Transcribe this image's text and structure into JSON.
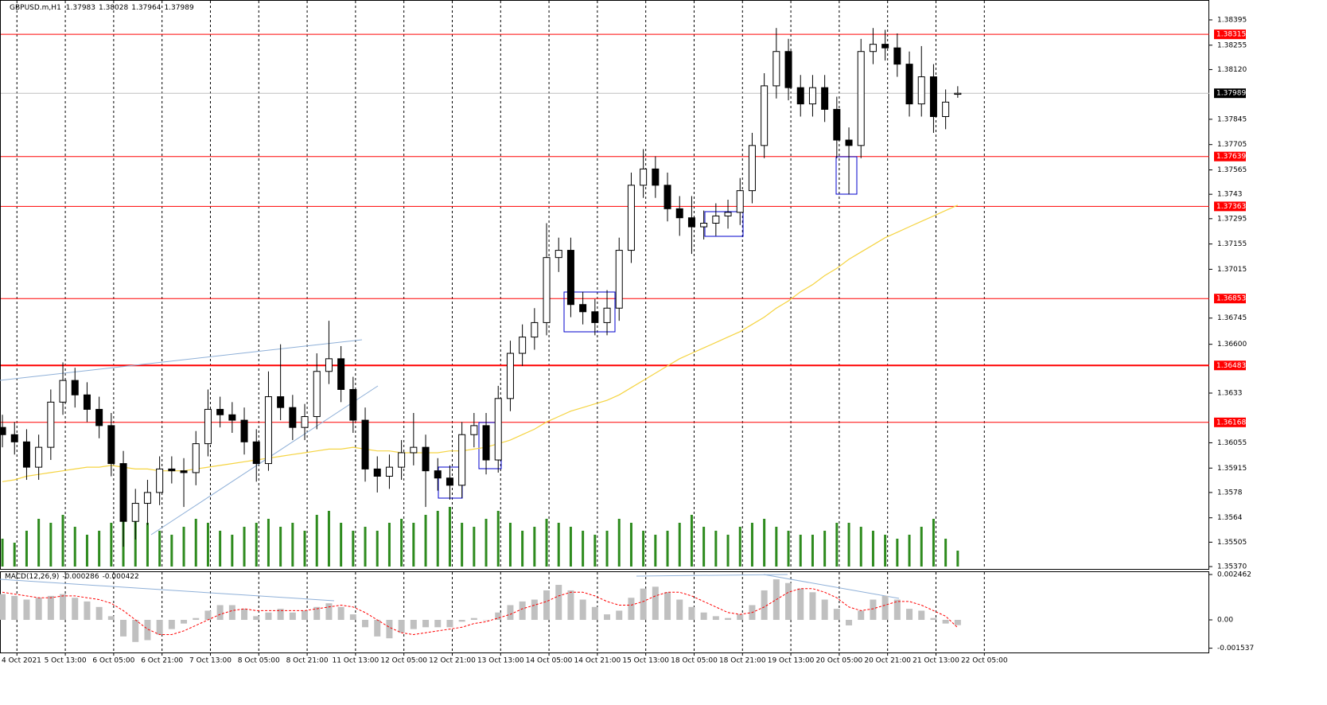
{
  "chart_data": {
    "type": "candlestick",
    "symbol": "GBPUSD.m,H1",
    "xlim": [
      -0.2,
      99.8
    ],
    "ylim": [
      1.35357,
      1.38505
    ],
    "grid": true,
    "bull_color": "#ffffff",
    "bear_color": "#000000",
    "yticks": [
      1.38395,
      1.38255,
      {
        "value": 1.3812,
        "label": "1.38120"
      },
      1.37845,
      1.37705,
      1.37565,
      1.3743,
      1.37295,
      1.37155,
      1.37015,
      1.36745,
      {
        "value": 1.366,
        "label": "1.36600"
      },
      1.3633,
      1.36055,
      1.35915,
      1.3578,
      1.3564,
      1.35505,
      {
        "value": 1.3537,
        "label": "1.35370"
      }
    ],
    "xticks": [
      {
        "value": 1.2,
        "label": "4 Oct 2021"
      },
      {
        "value": 5.2,
        "label": "5 Oct 13:00"
      },
      {
        "value": 9.2,
        "label": "6 Oct 05:00"
      },
      {
        "value": 13.2,
        "label": "6 Oct 21:00"
      },
      {
        "value": 17.2,
        "label": "7 Oct 13:00"
      },
      {
        "value": 21.2,
        "label": "8 Oct 05:00"
      },
      {
        "value": 25.2,
        "label": "8 Oct 21:00"
      },
      {
        "value": 29.2,
        "label": "11 Oct 13:00"
      },
      {
        "value": 33.2,
        "label": "12 Oct 05:00"
      },
      {
        "value": 37.2,
        "label": "12 Oct 21:00"
      },
      {
        "value": 41.2,
        "label": "13 Oct 13:00"
      },
      {
        "value": 45.2,
        "label": "14 Oct 05:00"
      },
      {
        "value": 49.2,
        "label": "14 Oct 21:00"
      },
      {
        "value": 53.2,
        "label": "15 Oct 13:00"
      },
      {
        "value": 57.2,
        "label": "18 Oct 05:00"
      },
      {
        "value": 61.2,
        "label": "18 Oct 21:00"
      },
      {
        "value": 65.2,
        "label": "19 Oct 13:00"
      },
      {
        "value": 69.2,
        "label": "20 Oct 05:00"
      },
      {
        "value": 73.2,
        "label": "20 Oct 21:00"
      },
      {
        "value": 77.2,
        "label": "21 Oct 13:00"
      },
      {
        "value": 81.2,
        "label": "22 Oct 05:00"
      }
    ],
    "levels": [
      1.38315,
      1.37639,
      1.37363,
      1.36853,
      1.36483,
      1.36168
    ],
    "level_color": "#ff0000",
    "open": [
      1.3614,
      1.361,
      1.3606,
      1.3592,
      1.3603,
      1.3628,
      1.364,
      1.3632,
      1.3624,
      1.3615,
      1.3594,
      1.3562,
      1.3572,
      1.3578,
      1.3591,
      1.359,
      1.3589,
      1.3605,
      1.3624,
      1.3621,
      1.3618,
      1.3606,
      1.3594,
      1.3631,
      1.3625,
      1.3614,
      1.362,
      1.3645,
      1.3652,
      1.3635,
      1.3618,
      1.3591,
      1.3587,
      1.3592,
      1.36,
      1.3603,
      1.359,
      1.3586,
      1.3582,
      1.361,
      1.3615,
      1.3596,
      1.363,
      1.3655,
      1.3664,
      1.3672,
      1.3708,
      1.3712,
      1.3682,
      1.3678,
      1.3672,
      1.368,
      1.3712,
      1.3748,
      1.3757,
      1.3748,
      1.3735,
      1.373,
      1.3725,
      1.3727,
      1.3731,
      1.3733,
      1.3745,
      1.377,
      1.3803,
      1.3822,
      1.3802,
      1.3793,
      1.3802,
      1.379,
      1.3773,
      1.377,
      1.3822,
      1.3826,
      1.3824,
      1.3815,
      1.3793,
      1.3808,
      1.3786,
      1.37983
    ],
    "high": [
      1.3621,
      1.3617,
      1.3613,
      1.361,
      1.3635,
      1.365,
      1.3647,
      1.3639,
      1.3631,
      1.3622,
      1.3601,
      1.358,
      1.3585,
      1.3598,
      1.3598,
      1.3597,
      1.3612,
      1.3635,
      1.3631,
      1.3628,
      1.3625,
      1.3613,
      1.3645,
      1.366,
      1.3632,
      1.3627,
      1.3655,
      1.3673,
      1.3659,
      1.3642,
      1.3625,
      1.3598,
      1.3599,
      1.3607,
      1.3622,
      1.361,
      1.3597,
      1.3593,
      1.3617,
      1.3622,
      1.3622,
      1.3637,
      1.3662,
      1.3671,
      1.368,
      1.3727,
      1.3719,
      1.3719,
      1.3689,
      1.3685,
      1.369,
      1.3719,
      1.3755,
      1.3768,
      1.3764,
      1.3755,
      1.3742,
      1.3742,
      1.3734,
      1.3738,
      1.374,
      1.3752,
      1.3777,
      1.381,
      1.3835,
      1.3829,
      1.3809,
      1.3809,
      1.3809,
      1.3797,
      1.378,
      1.3829,
      1.3835,
      1.3834,
      1.3832,
      1.3822,
      1.3825,
      1.3815,
      1.3801,
      1.38028
    ],
    "low": [
      1.3603,
      1.3599,
      1.3585,
      1.3585,
      1.3596,
      1.3621,
      1.3625,
      1.3617,
      1.3608,
      1.3587,
      1.3548,
      1.3552,
      1.356,
      1.3571,
      1.3583,
      1.357,
      1.3582,
      1.3598,
      1.3614,
      1.3611,
      1.3599,
      1.3584,
      1.359,
      1.3618,
      1.3607,
      1.3607,
      1.3613,
      1.3638,
      1.3628,
      1.3611,
      1.3584,
      1.3578,
      1.358,
      1.3585,
      1.3593,
      1.357,
      1.3579,
      1.3574,
      1.3575,
      1.3603,
      1.3588,
      1.3589,
      1.3623,
      1.3648,
      1.3657,
      1.3665,
      1.37,
      1.3675,
      1.3671,
      1.3665,
      1.3665,
      1.3673,
      1.3705,
      1.3741,
      1.3741,
      1.3728,
      1.372,
      1.371,
      1.3718,
      1.372,
      1.3724,
      1.3726,
      1.3738,
      1.3763,
      1.3796,
      1.3795,
      1.3786,
      1.3786,
      1.3783,
      1.3763,
      1.3743,
      1.3763,
      1.3815,
      1.3817,
      1.3808,
      1.3786,
      1.3786,
      1.3777,
      1.3779,
      1.37964
    ],
    "close": [
      1.361,
      1.3606,
      1.3592,
      1.3603,
      1.3628,
      1.364,
      1.3632,
      1.3624,
      1.3615,
      1.3594,
      1.3562,
      1.3572,
      1.3578,
      1.3591,
      1.359,
      1.3589,
      1.3605,
      1.3624,
      1.3621,
      1.3618,
      1.3606,
      1.3594,
      1.3631,
      1.3625,
      1.3614,
      1.362,
      1.3645,
      1.3652,
      1.3635,
      1.3618,
      1.3591,
      1.3587,
      1.3592,
      1.36,
      1.3603,
      1.359,
      1.3586,
      1.3582,
      1.361,
      1.3615,
      1.3596,
      1.363,
      1.3655,
      1.3664,
      1.3672,
      1.3708,
      1.3712,
      1.3682,
      1.3678,
      1.3672,
      1.368,
      1.3712,
      1.3748,
      1.3757,
      1.3748,
      1.3735,
      1.373,
      1.3725,
      1.3727,
      1.3731,
      1.3733,
      1.3745,
      1.377,
      1.3803,
      1.3822,
      1.3802,
      1.3793,
      1.3802,
      1.379,
      1.3773,
      1.377,
      1.3822,
      1.3826,
      1.3824,
      1.3815,
      1.3793,
      1.3808,
      1.3786,
      1.3794,
      1.37989
    ],
    "ma": {
      "color": "#f5d442",
      "values": [
        1.3584,
        1.3585,
        1.3587,
        1.3588,
        1.3589,
        1.359,
        1.3591,
        1.3592,
        1.3592,
        1.3593,
        1.3592,
        1.3591,
        1.3591,
        1.359,
        1.359,
        1.359,
        1.3591,
        1.3592,
        1.3593,
        1.3594,
        1.3595,
        1.3596,
        1.3597,
        1.3598,
        1.3599,
        1.36,
        1.3601,
        1.3602,
        1.3602,
        1.3603,
        1.3602,
        1.3601,
        1.3601,
        1.36,
        1.36,
        1.36,
        1.36,
        1.3601,
        1.3601,
        1.3602,
        1.3603,
        1.3605,
        1.3607,
        1.361,
        1.3613,
        1.3617,
        1.362,
        1.3623,
        1.3625,
        1.3627,
        1.3629,
        1.3632,
        1.3636,
        1.364,
        1.3644,
        1.3648,
        1.3652,
        1.3655,
        1.3658,
        1.3661,
        1.3664,
        1.3667,
        1.3671,
        1.3675,
        1.368,
        1.3684,
        1.3689,
        1.3693,
        1.3698,
        1.3702,
        1.3707,
        1.3711,
        1.3715,
        1.3719,
        1.3722,
        1.3725,
        1.3728,
        1.3731,
        1.3734,
        1.3737
      ]
    },
    "volume": {
      "color": "#2e8b1e",
      "values": [
        35,
        30,
        45,
        60,
        55,
        65,
        50,
        40,
        45,
        55,
        70,
        60,
        55,
        45,
        40,
        50,
        60,
        55,
        45,
        40,
        50,
        55,
        60,
        50,
        55,
        45,
        65,
        70,
        55,
        45,
        50,
        45,
        55,
        60,
        55,
        65,
        70,
        75,
        55,
        50,
        60,
        70,
        55,
        45,
        50,
        60,
        55,
        50,
        45,
        40,
        45,
        60,
        55,
        45,
        40,
        45,
        55,
        65,
        50,
        45,
        40,
        50,
        55,
        60,
        50,
        45,
        40,
        40,
        45,
        55,
        55,
        50,
        45,
        40,
        35,
        40,
        50,
        60,
        35,
        20
      ]
    },
    "macd": {
      "name": "MACD(12,26,9)",
      "ylim": [
        -0.00177,
        0.002635
      ],
      "yticks": [
        0.002462,
        {
          "value": 0,
          "label": "0.00"
        },
        -0.001537
      ],
      "histogram": {
        "color": "#c0c0c0",
        "values": [
          0.0014,
          0.0013,
          0.0011,
          0.0012,
          0.0013,
          0.0014,
          0.0012,
          0.001,
          0.0007,
          0.0002,
          -0.0009,
          -0.0012,
          -0.0011,
          -0.0008,
          -0.0005,
          -0.0002,
          0.0001,
          0.0005,
          0.0008,
          0.0008,
          0.0006,
          0.0002,
          0.0004,
          0.0006,
          0.0004,
          0.0005,
          0.0007,
          0.0009,
          0.0007,
          0.0003,
          -0.0004,
          -0.0009,
          -0.001,
          -0.0007,
          -0.0005,
          -0.0004,
          -0.0004,
          -0.0004,
          -0.0001,
          0.0001,
          0.0,
          0.0004,
          0.0008,
          0.001,
          0.0011,
          0.0016,
          0.0019,
          0.0016,
          0.0011,
          0.0007,
          0.0003,
          0.0005,
          0.0012,
          0.0017,
          0.0018,
          0.0015,
          0.0011,
          0.0007,
          0.0004,
          0.0002,
          0.0001,
          0.0003,
          0.0008,
          0.0016,
          0.0022,
          0.002,
          0.0017,
          0.0015,
          0.0011,
          0.0006,
          -0.0003,
          0.0005,
          0.0011,
          0.0013,
          0.0011,
          0.0006,
          0.0005,
          0.0001,
          -0.0002,
          -0.000286
        ]
      },
      "signal": {
        "color": "#ff0000",
        "values": [
          0.0015,
          0.0014,
          0.0013,
          0.0012,
          0.0012,
          0.0013,
          0.0013,
          0.0012,
          0.0011,
          0.0009,
          0.0005,
          0.0,
          -0.0005,
          -0.0008,
          -0.0008,
          -0.0006,
          -0.0003,
          0.0,
          0.0003,
          0.0005,
          0.0006,
          0.0005,
          0.0005,
          0.0005,
          0.0005,
          0.0005,
          0.0006,
          0.0007,
          0.0008,
          0.0007,
          0.0004,
          0.0,
          -0.0004,
          -0.0007,
          -0.0008,
          -0.0007,
          -0.0006,
          -0.0005,
          -0.0004,
          -0.0002,
          -0.0001,
          0.0001,
          0.0003,
          0.0006,
          0.0008,
          0.001,
          0.0013,
          0.0015,
          0.0015,
          0.0013,
          0.001,
          0.0008,
          0.0008,
          0.001,
          0.0013,
          0.0015,
          0.0015,
          0.0013,
          0.001,
          0.0007,
          0.0004,
          0.0003,
          0.0004,
          0.0007,
          0.0011,
          0.0015,
          0.0017,
          0.0017,
          0.0015,
          0.0012,
          0.0007,
          0.0005,
          0.0006,
          0.0008,
          0.001,
          0.001,
          0.0008,
          0.0005,
          0.0002,
          -0.000422
        ]
      }
    }
  }
}
